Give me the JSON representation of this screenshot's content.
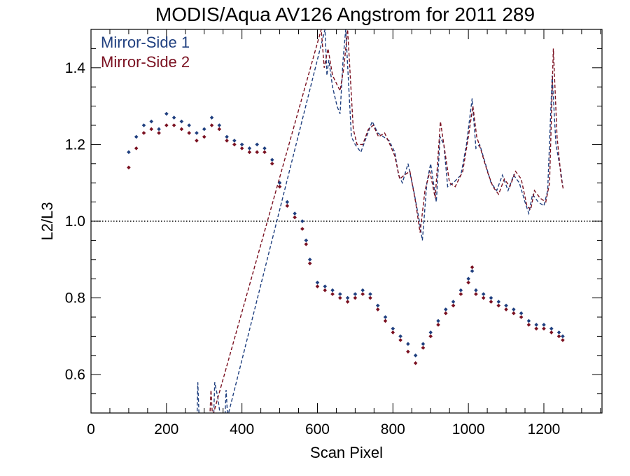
{
  "chart_data": {
    "type": "scatter",
    "title": "MODIS/Aqua AV126 Angstrom for 2011 289",
    "xlabel": "Scan Pixel",
    "ylabel": "L2/L3",
    "xlim": [
      0,
      1354
    ],
    "ylim": [
      0.5,
      1.5
    ],
    "x_ticks": [
      0,
      200,
      400,
      600,
      800,
      1000,
      1200
    ],
    "x_tick_labels": [
      "0",
      "200",
      "400",
      "600",
      "800",
      "1000",
      "1200"
    ],
    "y_ticks": [
      0.6,
      0.8,
      1.0,
      1.2,
      1.4
    ],
    "y_tick_labels": [
      "0.6",
      "0.8",
      "1.0",
      "1.2",
      "1.4"
    ],
    "reference_line": {
      "y": 1.0,
      "style": "dotted"
    },
    "legend_position": "top-left",
    "series": [
      {
        "name": "Mirror-Side 1",
        "color": "#1f3f7f",
        "points": [
          [
            100,
            1.18
          ],
          [
            120,
            1.22
          ],
          [
            140,
            1.25
          ],
          [
            160,
            1.26
          ],
          [
            180,
            1.24
          ],
          [
            200,
            1.28
          ],
          [
            220,
            1.27
          ],
          [
            240,
            1.26
          ],
          [
            260,
            1.25
          ],
          [
            280,
            1.23
          ],
          [
            300,
            1.24
          ],
          [
            320,
            1.27
          ],
          [
            340,
            1.25
          ],
          [
            360,
            1.22
          ],
          [
            380,
            1.21
          ],
          [
            400,
            1.2
          ],
          [
            420,
            1.19
          ],
          [
            440,
            1.2
          ],
          [
            460,
            1.19
          ],
          [
            480,
            1.16
          ],
          [
            500,
            1.1
          ],
          [
            520,
            1.05
          ],
          [
            540,
            1.02
          ],
          [
            560,
            1.0
          ],
          [
            570,
            0.95
          ],
          [
            580,
            0.9
          ],
          [
            600,
            0.84
          ],
          [
            620,
            0.83
          ],
          [
            640,
            0.82
          ],
          [
            660,
            0.81
          ],
          [
            680,
            0.8
          ],
          [
            700,
            0.81
          ],
          [
            720,
            0.82
          ],
          [
            740,
            0.81
          ],
          [
            760,
            0.78
          ],
          [
            780,
            0.75
          ],
          [
            800,
            0.72
          ],
          [
            820,
            0.7
          ],
          [
            840,
            0.68
          ],
          [
            860,
            0.65
          ],
          [
            880,
            0.68
          ],
          [
            900,
            0.71
          ],
          [
            920,
            0.74
          ],
          [
            940,
            0.77
          ],
          [
            960,
            0.79
          ],
          [
            980,
            0.82
          ],
          [
            1000,
            0.85
          ],
          [
            1010,
            0.87
          ],
          [
            1020,
            0.82
          ],
          [
            1040,
            0.81
          ],
          [
            1060,
            0.8
          ],
          [
            1080,
            0.79
          ],
          [
            1100,
            0.78
          ],
          [
            1120,
            0.77
          ],
          [
            1140,
            0.76
          ],
          [
            1160,
            0.74
          ],
          [
            1180,
            0.73
          ],
          [
            1200,
            0.73
          ],
          [
            1220,
            0.72
          ],
          [
            1240,
            0.71
          ],
          [
            1250,
            0.7
          ]
        ],
        "dashed_line": [
          [
            281,
            0.49
          ],
          [
            283,
            0.58
          ],
          [
            286,
            0.5
          ],
          [
            325,
            0.49
          ],
          [
            328,
            0.58
          ],
          [
            336,
            0.54
          ],
          [
            343,
            0.49
          ],
          [
            355,
            0.49
          ],
          [
            358,
            0.56
          ],
          [
            362,
            0.49
          ],
          [
            620,
            1.5
          ],
          [
            625,
            1.38
          ],
          [
            630,
            1.42
          ],
          [
            640,
            1.35
          ],
          [
            652,
            1.3
          ],
          [
            660,
            1.28
          ],
          [
            668,
            1.42
          ],
          [
            675,
            1.5
          ],
          [
            690,
            1.22
          ],
          [
            700,
            1.2
          ],
          [
            715,
            1.18
          ],
          [
            730,
            1.22
          ],
          [
            745,
            1.26
          ],
          [
            760,
            1.23
          ],
          [
            775,
            1.22
          ],
          [
            790,
            1.21
          ],
          [
            805,
            1.18
          ],
          [
            815,
            1.12
          ],
          [
            825,
            1.1
          ],
          [
            840,
            1.15
          ],
          [
            855,
            1.08
          ],
          [
            870,
            1.0
          ],
          [
            878,
            0.95
          ],
          [
            890,
            1.1
          ],
          [
            900,
            1.15
          ],
          [
            915,
            1.05
          ],
          [
            925,
            1.22
          ],
          [
            935,
            1.2
          ],
          [
            945,
            1.09
          ],
          [
            960,
            1.1
          ],
          [
            980,
            1.12
          ],
          [
            995,
            1.2
          ],
          [
            1010,
            1.32
          ],
          [
            1020,
            1.19
          ],
          [
            1030,
            1.2
          ],
          [
            1045,
            1.15
          ],
          [
            1060,
            1.1
          ],
          [
            1075,
            1.08
          ],
          [
            1090,
            1.12
          ],
          [
            1105,
            1.08
          ],
          [
            1120,
            1.12
          ],
          [
            1135,
            1.1
          ],
          [
            1150,
            1.05
          ],
          [
            1160,
            1.02
          ],
          [
            1170,
            1.07
          ],
          [
            1185,
            1.05
          ],
          [
            1200,
            1.04
          ],
          [
            1210,
            1.08
          ],
          [
            1222,
            1.38
          ],
          [
            1232,
            1.2
          ],
          [
            1245,
            1.13
          ],
          [
            1250,
            1.09
          ]
        ]
      },
      {
        "name": "Mirror-Side 2",
        "color": "#7a1020",
        "points": [
          [
            100,
            1.14
          ],
          [
            120,
            1.19
          ],
          [
            140,
            1.23
          ],
          [
            160,
            1.24
          ],
          [
            180,
            1.23
          ],
          [
            200,
            1.25
          ],
          [
            220,
            1.25
          ],
          [
            240,
            1.24
          ],
          [
            260,
            1.23
          ],
          [
            280,
            1.21
          ],
          [
            300,
            1.22
          ],
          [
            320,
            1.25
          ],
          [
            340,
            1.24
          ],
          [
            360,
            1.21
          ],
          [
            380,
            1.2
          ],
          [
            400,
            1.19
          ],
          [
            420,
            1.18
          ],
          [
            440,
            1.18
          ],
          [
            460,
            1.18
          ],
          [
            480,
            1.15
          ],
          [
            500,
            1.09
          ],
          [
            520,
            1.04
          ],
          [
            540,
            1.01
          ],
          [
            560,
            0.98
          ],
          [
            570,
            0.94
          ],
          [
            580,
            0.89
          ],
          [
            600,
            0.83
          ],
          [
            620,
            0.82
          ],
          [
            640,
            0.81
          ],
          [
            660,
            0.8
          ],
          [
            680,
            0.79
          ],
          [
            700,
            0.8
          ],
          [
            720,
            0.81
          ],
          [
            740,
            0.8
          ],
          [
            760,
            0.77
          ],
          [
            780,
            0.74
          ],
          [
            800,
            0.71
          ],
          [
            820,
            0.69
          ],
          [
            840,
            0.66
          ],
          [
            860,
            0.63
          ],
          [
            880,
            0.67
          ],
          [
            900,
            0.7
          ],
          [
            920,
            0.73
          ],
          [
            940,
            0.76
          ],
          [
            960,
            0.78
          ],
          [
            980,
            0.81
          ],
          [
            1000,
            0.84
          ],
          [
            1010,
            0.88
          ],
          [
            1020,
            0.81
          ],
          [
            1040,
            0.8
          ],
          [
            1060,
            0.79
          ],
          [
            1080,
            0.78
          ],
          [
            1100,
            0.77
          ],
          [
            1120,
            0.76
          ],
          [
            1140,
            0.75
          ],
          [
            1160,
            0.73
          ],
          [
            1180,
            0.72
          ],
          [
            1200,
            0.72
          ],
          [
            1220,
            0.71
          ],
          [
            1240,
            0.7
          ],
          [
            1250,
            0.69
          ]
        ],
        "dashed_line": [
          [
            315,
            0.49
          ],
          [
            318,
            0.56
          ],
          [
            322,
            0.49
          ],
          [
            610,
            1.5
          ],
          [
            618,
            1.4
          ],
          [
            628,
            1.45
          ],
          [
            640,
            1.38
          ],
          [
            650,
            1.36
          ],
          [
            660,
            1.34
          ],
          [
            670,
            1.4
          ],
          [
            680,
            1.5
          ],
          [
            695,
            1.24
          ],
          [
            705,
            1.2
          ],
          [
            720,
            1.2
          ],
          [
            735,
            1.24
          ],
          [
            748,
            1.25
          ],
          [
            762,
            1.22
          ],
          [
            778,
            1.23
          ],
          [
            792,
            1.2
          ],
          [
            805,
            1.17
          ],
          [
            818,
            1.11
          ],
          [
            830,
            1.12
          ],
          [
            845,
            1.13
          ],
          [
            860,
            1.05
          ],
          [
            872,
            0.97
          ],
          [
            885,
            1.08
          ],
          [
            898,
            1.13
          ],
          [
            912,
            1.06
          ],
          [
            926,
            1.26
          ],
          [
            938,
            1.18
          ],
          [
            950,
            1.1
          ],
          [
            965,
            1.09
          ],
          [
            985,
            1.13
          ],
          [
            1000,
            1.22
          ],
          [
            1012,
            1.3
          ],
          [
            1022,
            1.22
          ],
          [
            1035,
            1.18
          ],
          [
            1050,
            1.13
          ],
          [
            1065,
            1.09
          ],
          [
            1080,
            1.07
          ],
          [
            1095,
            1.11
          ],
          [
            1110,
            1.09
          ],
          [
            1125,
            1.13
          ],
          [
            1140,
            1.11
          ],
          [
            1155,
            1.04
          ],
          [
            1165,
            1.03
          ],
          [
            1175,
            1.08
          ],
          [
            1190,
            1.06
          ],
          [
            1205,
            1.05
          ],
          [
            1215,
            1.1
          ],
          [
            1225,
            1.45
          ],
          [
            1235,
            1.22
          ],
          [
            1245,
            1.12
          ],
          [
            1252,
            1.08
          ]
        ]
      }
    ]
  }
}
